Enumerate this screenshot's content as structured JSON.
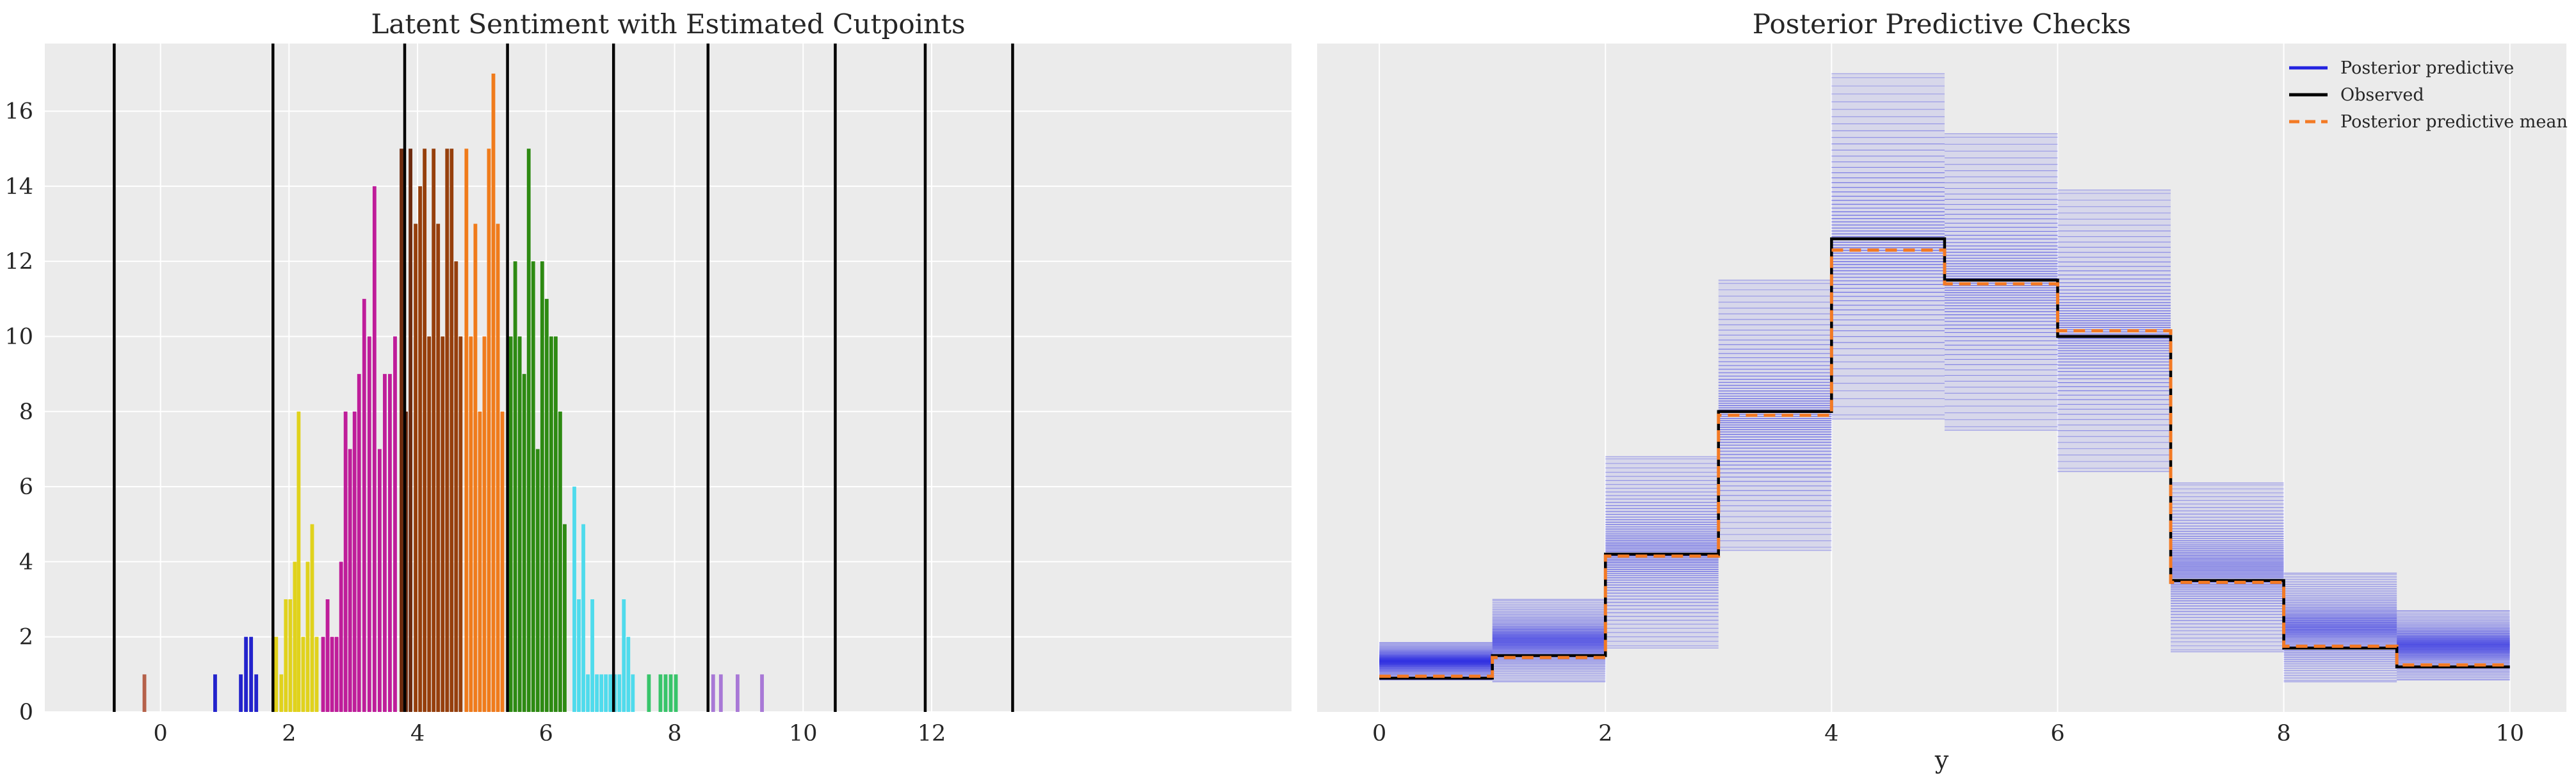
{
  "chart_data": [
    {
      "type": "bar",
      "title": "Latent Sentiment with Estimated Cutpoints",
      "xlabel": "",
      "ylabel": "",
      "xlim": [
        -1.8,
        17.6
      ],
      "ylim": [
        0,
        17.8
      ],
      "xticks": [
        0,
        2,
        4,
        6,
        8,
        10,
        12
      ],
      "yticks": [
        0,
        2,
        4,
        6,
        8,
        10,
        12,
        14,
        16
      ],
      "grid": true,
      "cutpoints": [
        -0.72,
        1.75,
        3.8,
        5.4,
        7.05,
        8.52,
        10.5,
        11.9,
        13.26
      ],
      "bar_width": 0.058,
      "series": [
        {
          "color": "#b5614a",
          "bars": [
            [
              -0.25,
              1
            ]
          ]
        },
        {
          "color": "#2323cc",
          "bars": [
            [
              0.85,
              1
            ],
            [
              1.25,
              1
            ],
            [
              1.33,
              2
            ],
            [
              1.41,
              2
            ],
            [
              1.49,
              1
            ]
          ]
        },
        {
          "color": "#e0d21c",
          "bars": [
            [
              1.8,
              2
            ],
            [
              1.88,
              1
            ],
            [
              1.95,
              3
            ],
            [
              2.02,
              3
            ],
            [
              2.09,
              4
            ],
            [
              2.15,
              8
            ],
            [
              2.22,
              2
            ],
            [
              2.29,
              4
            ],
            [
              2.36,
              5
            ],
            [
              2.43,
              2
            ]
          ]
        },
        {
          "color": "#bf1d9a",
          "bars": [
            [
              2.53,
              2
            ],
            [
              2.6,
              3
            ],
            [
              2.67,
              2
            ],
            [
              2.74,
              2
            ],
            [
              2.81,
              4
            ],
            [
              2.88,
              8
            ],
            [
              2.95,
              7
            ],
            [
              3.02,
              8
            ],
            [
              3.09,
              9
            ],
            [
              3.17,
              11
            ],
            [
              3.25,
              10
            ],
            [
              3.33,
              14
            ],
            [
              3.41,
              7
            ],
            [
              3.49,
              9
            ],
            [
              3.57,
              9
            ],
            [
              3.65,
              10
            ]
          ]
        },
        {
          "color": "#6e2a0e",
          "bars": [
            [
              3.75,
              15
            ],
            [
              3.82,
              8
            ],
            [
              3.89,
              15
            ]
          ]
        },
        {
          "color": "#963f0c",
          "bars": [
            [
              3.97,
              13
            ],
            [
              4.04,
              14
            ],
            [
              4.11,
              15
            ],
            [
              4.18,
              10
            ],
            [
              4.25,
              15
            ],
            [
              4.32,
              13
            ],
            [
              4.39,
              10
            ],
            [
              4.46,
              15
            ],
            [
              4.53,
              15
            ],
            [
              4.6,
              12
            ],
            [
              4.67,
              10
            ]
          ]
        },
        {
          "color": "#f07b1b",
          "bars": [
            [
              4.76,
              15
            ],
            [
              4.83,
              10
            ],
            [
              4.9,
              13
            ],
            [
              4.97,
              8
            ],
            [
              5.04,
              10
            ],
            [
              5.11,
              15
            ],
            [
              5.18,
              17
            ],
            [
              5.25,
              13
            ],
            [
              5.32,
              8
            ]
          ]
        },
        {
          "color": "#2d8a12",
          "bars": [
            [
              5.45,
              10
            ],
            [
              5.52,
              12
            ],
            [
              5.59,
              10
            ],
            [
              5.66,
              9
            ],
            [
              5.73,
              15
            ],
            [
              5.8,
              12
            ],
            [
              5.87,
              7
            ],
            [
              5.94,
              12
            ],
            [
              6.01,
              11
            ],
            [
              6.08,
              10
            ],
            [
              6.15,
              10
            ],
            [
              6.22,
              8
            ],
            [
              6.29,
              5
            ]
          ]
        },
        {
          "color": "#4fdbec",
          "bars": [
            [
              6.44,
              6
            ],
            [
              6.51,
              3
            ],
            [
              6.58,
              5
            ],
            [
              6.65,
              1
            ],
            [
              6.72,
              3
            ],
            [
              6.79,
              1
            ],
            [
              6.86,
              1
            ],
            [
              6.93,
              1
            ],
            [
              7.0,
              1
            ],
            [
              7.07,
              1
            ],
            [
              7.14,
              1
            ],
            [
              7.21,
              3
            ],
            [
              7.28,
              2
            ],
            [
              7.35,
              1
            ]
          ]
        },
        {
          "color": "#38c46a",
          "bars": [
            [
              7.6,
              1
            ],
            [
              7.78,
              1
            ],
            [
              7.86,
              1
            ],
            [
              7.94,
              1
            ],
            [
              8.02,
              1
            ]
          ]
        },
        {
          "color": "#a878d6",
          "bars": [
            [
              8.6,
              1
            ],
            [
              8.72,
              1
            ],
            [
              8.98,
              1
            ],
            [
              9.36,
              1
            ]
          ]
        }
      ]
    },
    {
      "type": "line",
      "title": "Posterior Predictive Checks",
      "xlabel": "y",
      "ylabel": "",
      "xlim": [
        -0.55,
        10.5
      ],
      "ylim": [
        0,
        17.8
      ],
      "xticks": [
        0,
        2,
        4,
        6,
        8,
        10
      ],
      "grid": true,
      "legend": "top-right",
      "bin_edges": [
        0,
        1,
        2,
        3,
        4,
        5,
        6,
        7,
        8,
        9,
        10
      ],
      "series": [
        {
          "name": "Posterior predictive",
          "color": "#2323e0",
          "ranges": [
            [
              0.85,
              1.85
            ],
            [
              0.8,
              3.0
            ],
            [
              1.7,
              6.8
            ],
            [
              4.3,
              11.5
            ],
            [
              7.8,
              17.0
            ],
            [
              7.5,
              15.4
            ],
            [
              6.4,
              13.9
            ],
            [
              1.6,
              6.1
            ],
            [
              0.8,
              3.7
            ],
            [
              0.85,
              2.7
            ]
          ]
        },
        {
          "name": "Observed",
          "color": "#000000",
          "values": [
            0.9,
            1.5,
            4.2,
            8.0,
            12.6,
            11.5,
            10.0,
            3.5,
            1.7,
            1.2
          ]
        },
        {
          "name": "Posterior predictive mean",
          "color": "#f37a24",
          "values": [
            0.95,
            1.45,
            4.15,
            7.9,
            12.3,
            11.4,
            10.15,
            3.45,
            1.75,
            1.25
          ]
        }
      ]
    }
  ]
}
